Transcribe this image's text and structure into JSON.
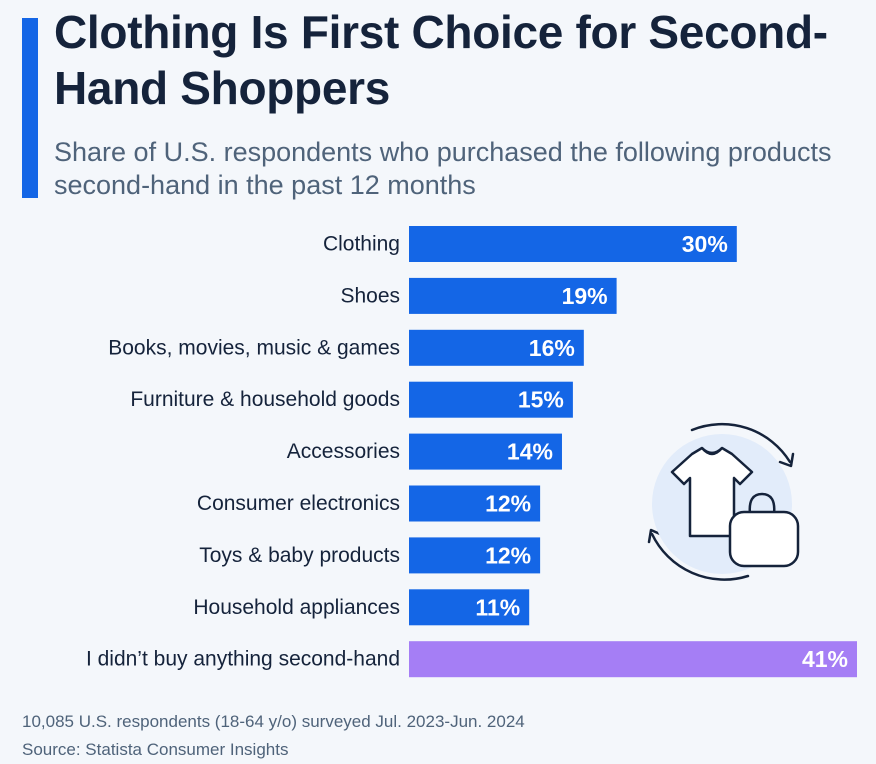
{
  "title": "Clothing Is First Choice for Second-Hand Shoppers",
  "subtitle": "Share of U.S. respondents who purchased the following products second-hand in the past 12 months",
  "footnote": {
    "note": "10,085 U.S. respondents (18-64 y/o) surveyed Jul. 2023-Jun. 2024",
    "source": "Source: Statista Consumer Insights"
  },
  "colors": {
    "accent": "#1466e6",
    "bar": "#1466e6",
    "highlight_bar": "#a57ef5",
    "title": "#15233b",
    "icon_fill": "#e2ecfa"
  },
  "illustration": {
    "icons": [
      "t-shirt-icon",
      "shopping-bag-icon",
      "circular-arrows-icon"
    ]
  },
  "chart_data": {
    "type": "bar",
    "orientation": "horizontal",
    "title": "Clothing Is First Choice for Second-Hand Shoppers",
    "subtitle": "Share of U.S. respondents who purchased the following products second-hand in the past 12 months",
    "unit": "%",
    "categories": [
      "Clothing",
      "Shoes",
      "Books, movies, music & games",
      "Furniture & household goods",
      "Accessories",
      "Consumer electronics",
      "Toys & baby products",
      "Household appliances",
      "I didn’t buy anything second-hand"
    ],
    "values": [
      30,
      19,
      16,
      15,
      14,
      12,
      12,
      11,
      41
    ],
    "value_labels": [
      "30%",
      "19%",
      "16%",
      "15%",
      "14%",
      "12%",
      "12%",
      "11%",
      "41%"
    ],
    "highlighted": [
      "I didn’t buy anything second-hand"
    ],
    "xlim": [
      0,
      41
    ],
    "grid": false,
    "legend": "none"
  }
}
